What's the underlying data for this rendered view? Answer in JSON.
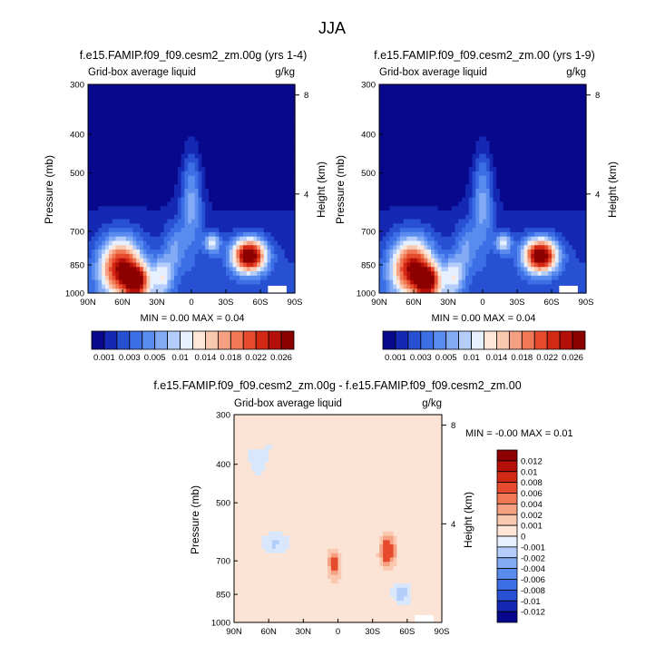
{
  "suptitle": "JJA",
  "panels": [
    {
      "title": "f.e15.FAMIP.f09_f09.cesm2_zm.00g (yrs 1-4)",
      "left_label": "Grid-box average liquid",
      "right_label": "g/kg",
      "ylabel": "Pressure (mb)",
      "ylabel_right": "Height (km)",
      "stats": "MIN =   0.00  MAX =  0.04"
    },
    {
      "title": "f.e15.FAMIP.f09_f09.cesm2_zm.00 (yrs 1-9)",
      "left_label": "Grid-box average liquid",
      "right_label": "g/kg",
      "ylabel": "Pressure (mb)",
      "ylabel_right": "Height (km)",
      "stats": "MIN =   0.00  MAX =  0.04"
    },
    {
      "title": "f.e15.FAMIP.f09_f09.cesm2_zm.00g - f.e15.FAMIP.f09_f09.cesm2_zm.00",
      "left_label": "Grid-box average liquid",
      "right_label": "g/kg",
      "ylabel": "Pressure (mb)",
      "ylabel_right": "Height (km)",
      "stats": "MIN =  -0.00  MAX =   0.01"
    }
  ],
  "chart_data": [
    {
      "type": "heatmap",
      "x_ticks": [
        "90N",
        "60N",
        "30N",
        "0",
        "30S",
        "60S",
        "90S"
      ],
      "y_ticks": [
        "300",
        "400",
        "500",
        "700",
        "850",
        "1000"
      ],
      "y_ticks_right": [
        "8",
        "4"
      ],
      "colorbar_labels": [
        "0.001",
        "0.003",
        "0.005",
        "0.01",
        "0.014",
        "0.018",
        "0.022",
        "0.026"
      ],
      "colorbar_colors": [
        "#08088c",
        "#1428b4",
        "#2850d2",
        "#3c6ee6",
        "#5a8cf0",
        "#82aaf5",
        "#b4cdfa",
        "#e6f0ff",
        "#ffe6d7",
        "#fac8af",
        "#f5a082",
        "#f07855",
        "#e64b2d",
        "#d22814",
        "#b40f08",
        "#8c0000"
      ]
    },
    {
      "type": "heatmap",
      "x_ticks": [
        "90N",
        "60N",
        "30N",
        "0",
        "30S",
        "60S",
        "90S"
      ],
      "y_ticks": [
        "300",
        "400",
        "500",
        "700",
        "850",
        "1000"
      ],
      "y_ticks_right": [
        "8",
        "4"
      ],
      "colorbar_labels": [
        "0.001",
        "0.003",
        "0.005",
        "0.01",
        "0.014",
        "0.018",
        "0.022",
        "0.026"
      ],
      "colorbar_colors": [
        "#08088c",
        "#1428b4",
        "#2850d2",
        "#3c6ee6",
        "#5a8cf0",
        "#82aaf5",
        "#b4cdfa",
        "#e6f0ff",
        "#ffe6d7",
        "#fac8af",
        "#f5a082",
        "#f07855",
        "#e64b2d",
        "#d22814",
        "#b40f08",
        "#8c0000"
      ]
    },
    {
      "type": "heatmap",
      "x_ticks": [
        "90N",
        "60N",
        "30N",
        "0",
        "30S",
        "60S",
        "90S"
      ],
      "y_ticks": [
        "300",
        "400",
        "500",
        "700",
        "850",
        "1000"
      ],
      "y_ticks_right": [
        "8",
        "4"
      ],
      "colorbar_labels": [
        "0.012",
        "0.01",
        "0.008",
        "0.006",
        "0.004",
        "0.002",
        "0.001",
        "0",
        "-0.001",
        "-0.002",
        "-0.004",
        "-0.006",
        "-0.008",
        "-0.01",
        "-0.012"
      ],
      "colorbar_colors": [
        "#8c0000",
        "#b40f08",
        "#d22814",
        "#e64b2d",
        "#f07855",
        "#f5a082",
        "#fac8af",
        "#ffe6d7",
        "#e6f0ff",
        "#b4cdfa",
        "#82aaf5",
        "#5a8cf0",
        "#3c6ee6",
        "#2850d2",
        "#1428b4",
        "#08088c"
      ]
    }
  ]
}
